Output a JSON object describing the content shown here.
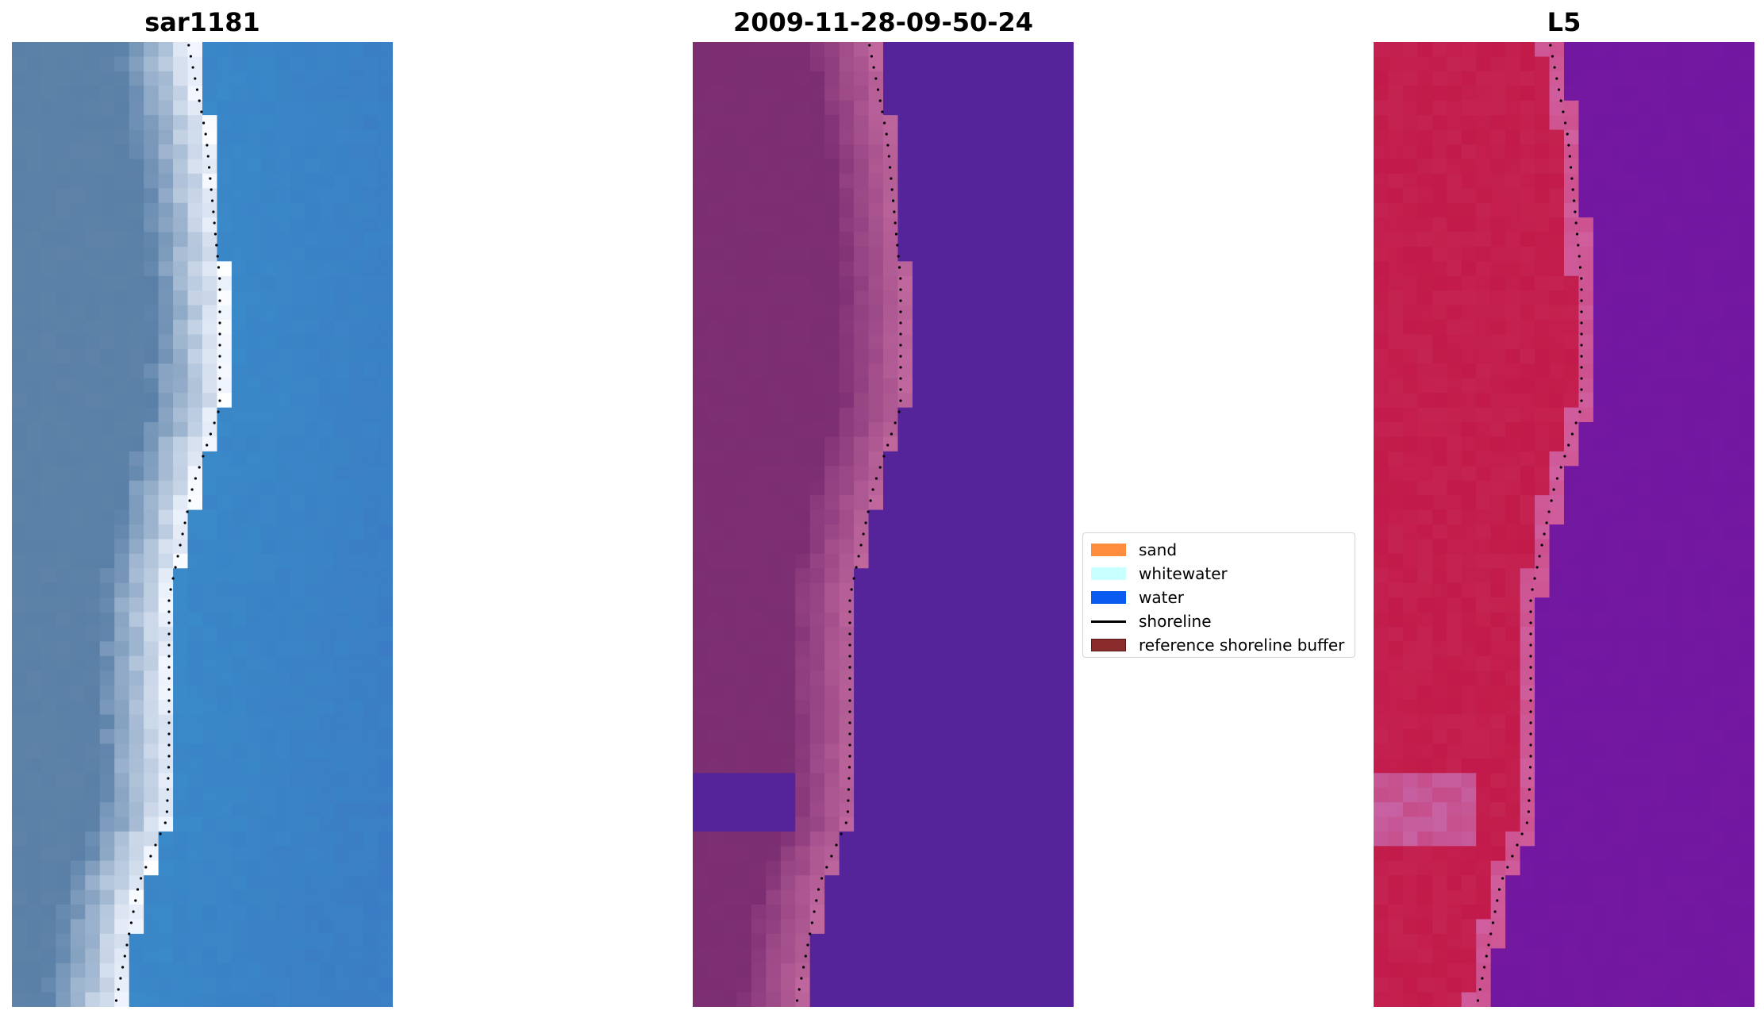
{
  "panels": [
    {
      "title": "sar1181",
      "kind": "rgb"
    },
    {
      "title": "2009-11-28-09-50-24",
      "kind": "classified"
    },
    {
      "title": "L5",
      "kind": "mndwi"
    }
  ],
  "legend": {
    "items": [
      {
        "label": "sand",
        "color": "#ff8c3c",
        "type": "patch"
      },
      {
        "label": "whitewater",
        "color": "#c8ffff",
        "type": "patch"
      },
      {
        "label": "water",
        "color": "#0a5cf0",
        "type": "patch"
      },
      {
        "label": "shoreline",
        "color": "#000000",
        "type": "line"
      },
      {
        "label": "reference shoreline buffer",
        "color": "#8b2c2c",
        "type": "patch",
        "edge": "#5a1a1a"
      }
    ]
  },
  "colors": {
    "rgb_land": "#5a80a8",
    "rgb_sea": "#3a88c8",
    "rgb_surf": "#f2f6ff",
    "class_sand": "#7e2f74",
    "class_surf": "#c0689e",
    "class_water": "#55249a",
    "mndwi_land": "#c21a4a",
    "mndwi_edge": "#d060a0",
    "mndwi_water": "#7418a0"
  }
}
